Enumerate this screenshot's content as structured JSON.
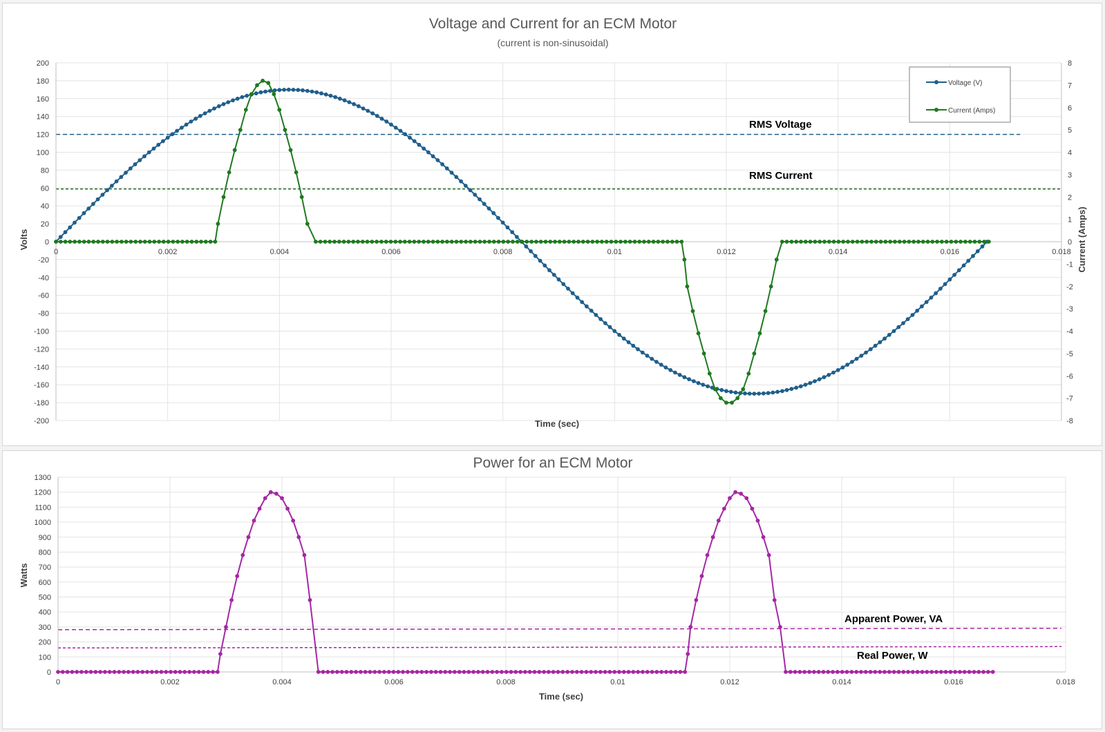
{
  "chart_data": [
    {
      "type": "line",
      "title": "Voltage and Current for an ECM Motor",
      "subtitle": "(current is non-sinusoidal)",
      "xlabel": "Time (sec)",
      "ylabel": "Volts",
      "y2label": "Current (Amps)",
      "xlim": [
        0,
        0.018
      ],
      "ylim": [
        -200,
        200
      ],
      "y2lim": [
        -8,
        8
      ],
      "grid": true,
      "legend_position": "top-right",
      "x_ticks": [
        0,
        0.002,
        0.004,
        0.006,
        0.008,
        0.01,
        0.012,
        0.014,
        0.016,
        0.018
      ],
      "x_tick_labels": [
        "0",
        "0.002",
        "0.004",
        "0.006",
        "0.008",
        "0.01",
        "0.012",
        "0.014",
        "0.016",
        "0.018"
      ],
      "y_ticks": [
        -200,
        -180,
        -160,
        -140,
        -120,
        -100,
        -80,
        -60,
        -40,
        -20,
        0,
        20,
        40,
        60,
        80,
        100,
        120,
        140,
        160,
        180,
        200
      ],
      "y2_ticks": [
        -8,
        -7,
        -6,
        -5,
        -4,
        -3,
        -2,
        -1,
        0,
        1,
        2,
        3,
        4,
        5,
        6,
        7,
        8
      ],
      "series": [
        {
          "name": "Voltage (V)",
          "color": "#1f5f8b",
          "axis": "left",
          "x": [
            0,
            0.000833,
            0.001667,
            0.0025,
            0.003333,
            0.004167,
            0.005,
            0.005833,
            0.006667,
            0.0075,
            0.008333,
            0.009167,
            0.01,
            0.010833,
            0.011667,
            0.0125,
            0.013333,
            0.014167,
            0.015,
            0.015833,
            0.016667
          ],
          "values": [
            0,
            52.5,
            99.9,
            137.5,
            161.7,
            170,
            161.7,
            137.5,
            99.9,
            52.5,
            0,
            -52.5,
            -99.9,
            -137.5,
            -161.7,
            -170,
            -161.7,
            -137.5,
            -99.9,
            -52.5,
            0
          ]
        },
        {
          "name": "Current (Amps)",
          "color": "#1e7a1e",
          "axis": "right",
          "x": [
            0,
            0.00285,
            0.0029,
            0.003,
            0.0031,
            0.0032,
            0.0033,
            0.0034,
            0.0035,
            0.0036,
            0.0037,
            0.0038,
            0.0039,
            0.004,
            0.0041,
            0.0042,
            0.0043,
            0.0044,
            0.0045,
            0.00465,
            0.0112,
            0.01125,
            0.0113,
            0.0114,
            0.0115,
            0.0116,
            0.0117,
            0.0118,
            0.0119,
            0.012,
            0.0121,
            0.0122,
            0.0123,
            0.0124,
            0.0125,
            0.0126,
            0.0127,
            0.0128,
            0.0129,
            0.013,
            0.0167
          ],
          "values": [
            0,
            0,
            0.8,
            2.0,
            3.1,
            4.1,
            5.0,
            5.9,
            6.6,
            7.0,
            7.2,
            7.1,
            6.6,
            5.9,
            5.0,
            4.1,
            3.1,
            2.0,
            0.8,
            0,
            0,
            -0.8,
            -2.0,
            -3.1,
            -4.1,
            -5.0,
            -5.9,
            -6.6,
            -7.0,
            -7.2,
            -7.2,
            -7.0,
            -6.6,
            -5.9,
            -5.0,
            -4.1,
            -3.1,
            -2.0,
            -0.8,
            0,
            0
          ]
        }
      ],
      "reference_lines": [
        {
          "label": "RMS Voltage",
          "axis": "left",
          "y": 120,
          "color": "#1f5f8b"
        },
        {
          "label": "RMS Current",
          "axis": "left",
          "y": 59,
          "color": "#1e6b1e"
        }
      ]
    },
    {
      "type": "line",
      "title": "Power for an ECM Motor",
      "xlabel": "Time (sec)",
      "ylabel": "Watts",
      "xlim": [
        0,
        0.018
      ],
      "ylim": [
        0,
        1300
      ],
      "grid": true,
      "x_ticks": [
        0,
        0.002,
        0.004,
        0.006,
        0.008,
        0.01,
        0.012,
        0.014,
        0.016,
        0.018
      ],
      "x_tick_labels": [
        "0",
        "0.002",
        "0.004",
        "0.006",
        "0.008",
        "0.01",
        "0.012",
        "0.014",
        "0.016",
        "0.018"
      ],
      "y_ticks": [
        0,
        100,
        200,
        300,
        400,
        500,
        600,
        700,
        800,
        900,
        1000,
        1100,
        1200,
        1300
      ],
      "series": [
        {
          "color": "#a626a4",
          "x": [
            0,
            0.00285,
            0.0029,
            0.003,
            0.0031,
            0.0032,
            0.0033,
            0.0034,
            0.0035,
            0.0036,
            0.0037,
            0.0038,
            0.0039,
            0.004,
            0.0041,
            0.0042,
            0.0043,
            0.0044,
            0.0045,
            0.00465,
            0.0112,
            0.01125,
            0.0113,
            0.0114,
            0.0115,
            0.0116,
            0.0117,
            0.0118,
            0.0119,
            0.012,
            0.0121,
            0.0122,
            0.0123,
            0.0124,
            0.0125,
            0.0126,
            0.0127,
            0.0128,
            0.0129,
            0.013,
            0.0167
          ],
          "values": [
            0,
            0,
            120,
            300,
            480,
            640,
            780,
            900,
            1010,
            1090,
            1160,
            1200,
            1190,
            1160,
            1090,
            1010,
            900,
            780,
            480,
            0,
            0,
            120,
            300,
            480,
            640,
            780,
            900,
            1010,
            1090,
            1160,
            1200,
            1190,
            1160,
            1090,
            1010,
            900,
            780,
            480,
            300,
            0,
            0
          ]
        }
      ],
      "reference_lines": [
        {
          "label": "Apparent Power, VA",
          "y": 282,
          "color": "#a626a4"
        },
        {
          "label": "Real Power, W",
          "y": 160,
          "color": "#a626a4"
        }
      ]
    }
  ]
}
